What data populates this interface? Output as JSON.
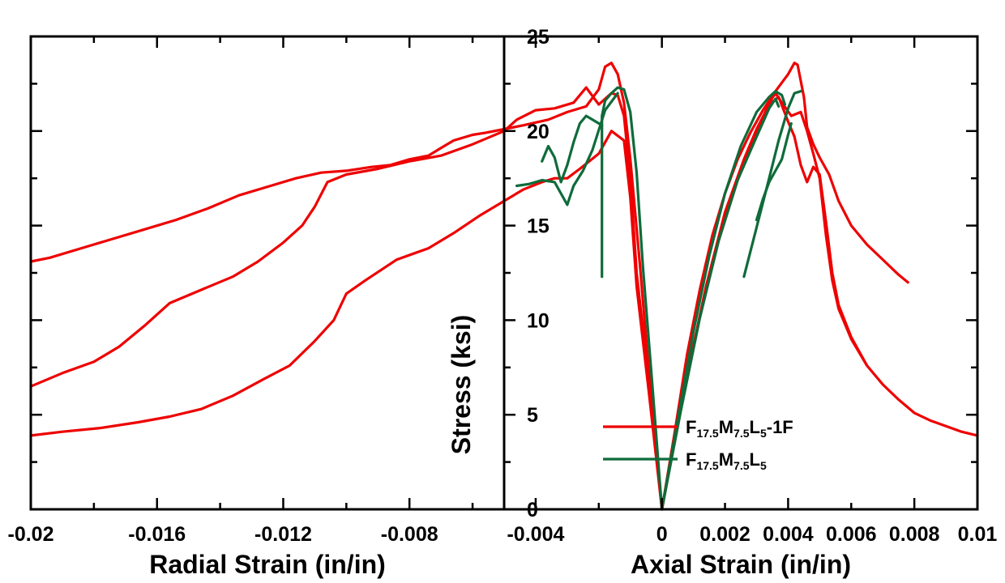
{
  "chart_data": {
    "type": "line",
    "ylabel": "Stress (ksi)",
    "x_left_label": "Radial Strain (in/in)",
    "x_right_label": "Axial Strain (in/in)",
    "x_left_ticks": [
      "-0.02",
      "-0.016",
      "-0.012",
      "-0.008",
      "-0.004",
      "0"
    ],
    "x_right_ticks": [
      "0.002",
      "0.004",
      "0.006",
      "0.008",
      "0.01"
    ],
    "y_ticks": [
      "0",
      "5",
      "10",
      "15",
      "20",
      "25"
    ],
    "xlim": [
      -0.02,
      0.01
    ],
    "ylim": [
      0,
      25
    ],
    "grid": false,
    "legend_position": "bottom-right",
    "colors": {
      "red": "#ee0000",
      "green": "#0f6b3a"
    },
    "series": [
      {
        "name": "F17.5M7.5L5-1F",
        "legend_parts": [
          {
            "t": "F",
            "sub": false
          },
          {
            "t": "17.5",
            "sub": true
          },
          {
            "t": "M",
            "sub": false
          },
          {
            "t": "7.5",
            "sub": true
          },
          {
            "t": "L",
            "sub": false
          },
          {
            "t": "5",
            "sub": true
          },
          {
            "t": "-1F",
            "sub": false
          }
        ],
        "color": "#ee0000",
        "curves": [
          [
            [
              0,
              0
            ],
            [
              0.0004,
              4
            ],
            [
              0.0008,
              8.2
            ],
            [
              0.0012,
              11.6
            ],
            [
              0.0016,
              14.5
            ],
            [
              0.002,
              16.7
            ],
            [
              0.0024,
              18.5
            ],
            [
              0.0028,
              19.9
            ],
            [
              0.0032,
              21.1
            ],
            [
              0.0036,
              22.1
            ],
            [
              0.004,
              23
            ],
            [
              0.0042,
              23.6
            ],
            [
              0.0043,
              23.5
            ],
            [
              0.0045,
              21.8
            ],
            [
              0.0046,
              20.2
            ],
            [
              0.0048,
              19.3
            ],
            [
              0.005,
              18.6
            ],
            [
              0.0053,
              17.7
            ],
            [
              0.0056,
              16.3
            ],
            [
              0.006,
              15
            ],
            [
              0.0065,
              14
            ],
            [
              0.007,
              13.2
            ],
            [
              0.0075,
              12.4
            ],
            [
              0.0078,
              12
            ]
          ],
          [
            [
              0,
              0
            ],
            [
              0.0006,
              5.4
            ],
            [
              0.0012,
              10.2
            ],
            [
              0.0018,
              14.2
            ],
            [
              0.0024,
              17.4
            ],
            [
              0.003,
              19.9
            ],
            [
              0.0034,
              21.5
            ],
            [
              0.0036,
              22
            ],
            [
              0.0038,
              21.5
            ],
            [
              0.0041,
              20.8
            ],
            [
              0.0044,
              21
            ],
            [
              0.0046,
              20
            ],
            [
              0.0048,
              18.8
            ],
            [
              0.005,
              17.5
            ],
            [
              0.0052,
              14.5
            ],
            [
              0.0054,
              12.1
            ],
            [
              0.0056,
              10.6
            ],
            [
              0.006,
              9
            ],
            [
              0.0065,
              7.6
            ],
            [
              0.007,
              6.6
            ],
            [
              0.0075,
              5.8
            ],
            [
              0.008,
              5.1
            ],
            [
              0.0085,
              4.7
            ],
            [
              0.009,
              4.4
            ],
            [
              0.0095,
              4.1
            ],
            [
              0.01,
              3.9
            ]
          ],
          [
            [
              0,
              0
            ],
            [
              0.0007,
              6.3
            ],
            [
              0.0014,
              11.8
            ],
            [
              0.002,
              15.7
            ],
            [
              0.0026,
              18.5
            ],
            [
              0.003,
              20.1
            ],
            [
              0.0034,
              21.4
            ],
            [
              0.0037,
              21.8
            ],
            [
              0.004,
              20.5
            ],
            [
              0.0042,
              19.7
            ],
            [
              0.0044,
              18.2
            ],
            [
              0.0046,
              17.3
            ],
            [
              0.0048,
              18.1
            ],
            [
              0.005,
              17.7
            ],
            [
              0.0052,
              15.2
            ],
            [
              0.0054,
              12.5
            ],
            [
              0.0056,
              10.8
            ],
            [
              0.006,
              9.1
            ],
            [
              0.0065,
              7.6
            ]
          ],
          [
            [
              0,
              0
            ],
            [
              -0.0004,
              7
            ],
            [
              -0.0007,
              13
            ],
            [
              -0.001,
              18.5
            ],
            [
              -0.0012,
              21.5
            ],
            [
              -0.0014,
              23
            ],
            [
              -0.0016,
              23.6
            ],
            [
              -0.0018,
              23.4
            ],
            [
              -0.002,
              22.2
            ],
            [
              -0.0024,
              21.3
            ],
            [
              -0.003,
              21
            ],
            [
              -0.0036,
              20.6
            ],
            [
              -0.0044,
              20.3
            ],
            [
              -0.005,
              20.1
            ],
            [
              -0.0056,
              19.9
            ],
            [
              -0.006,
              19.8
            ],
            [
              -0.0066,
              19.5
            ],
            [
              -0.007,
              19.1
            ],
            [
              -0.0074,
              18.7
            ],
            [
              -0.008,
              18.5
            ],
            [
              -0.0086,
              18.2
            ],
            [
              -0.0092,
              18.1
            ],
            [
              -0.01,
              17.9
            ],
            [
              -0.0108,
              17.8
            ],
            [
              -0.0116,
              17.5
            ],
            [
              -0.0124,
              17.1
            ],
            [
              -0.0134,
              16.6
            ],
            [
              -0.0144,
              15.9
            ],
            [
              -0.0154,
              15.3
            ],
            [
              -0.0164,
              14.8
            ],
            [
              -0.0174,
              14.3
            ],
            [
              -0.0184,
              13.8
            ],
            [
              -0.0194,
              13.3
            ],
            [
              -0.02,
              13.1
            ]
          ],
          [
            [
              0,
              0
            ],
            [
              -0.0004,
              6.5
            ],
            [
              -0.0008,
              12.5
            ],
            [
              -0.001,
              17.5
            ],
            [
              -0.0012,
              20.8
            ],
            [
              -0.0014,
              21.9
            ],
            [
              -0.0016,
              22
            ],
            [
              -0.002,
              21.4
            ],
            [
              -0.0024,
              22.3
            ],
            [
              -0.0028,
              21.5
            ],
            [
              -0.0034,
              21.2
            ],
            [
              -0.004,
              21.1
            ],
            [
              -0.0046,
              20.6
            ],
            [
              -0.005,
              20
            ],
            [
              -0.006,
              19.3
            ],
            [
              -0.007,
              18.7
            ],
            [
              -0.008,
              18.4
            ],
            [
              -0.009,
              18
            ],
            [
              -0.01,
              17.7
            ],
            [
              -0.0106,
              17.3
            ],
            [
              -0.011,
              16
            ],
            [
              -0.0114,
              15
            ],
            [
              -0.012,
              14.1
            ],
            [
              -0.0128,
              13.1
            ],
            [
              -0.0136,
              12.3
            ],
            [
              -0.0146,
              11.6
            ],
            [
              -0.0156,
              10.9
            ],
            [
              -0.0164,
              9.7
            ],
            [
              -0.0172,
              8.6
            ],
            [
              -0.018,
              7.8
            ],
            [
              -0.019,
              7.2
            ],
            [
              -0.02,
              6.5
            ]
          ],
          [
            [
              0,
              0
            ],
            [
              -0.0004,
              6
            ],
            [
              -0.0008,
              11.8
            ],
            [
              -0.001,
              16.5
            ],
            [
              -0.0012,
              19.5
            ],
            [
              -0.0016,
              20
            ],
            [
              -0.002,
              18.8
            ],
            [
              -0.0026,
              18
            ],
            [
              -0.003,
              17.5
            ],
            [
              -0.0034,
              17.5
            ],
            [
              -0.0038,
              17.3
            ],
            [
              -0.0044,
              16.9
            ],
            [
              -0.005,
              16.3
            ],
            [
              -0.0058,
              15.5
            ],
            [
              -0.0066,
              14.6
            ],
            [
              -0.0074,
              13.8
            ],
            [
              -0.0084,
              13.2
            ],
            [
              -0.0094,
              12.1
            ],
            [
              -0.01,
              11.4
            ],
            [
              -0.0104,
              10
            ],
            [
              -0.011,
              8.9
            ],
            [
              -0.0118,
              7.6
            ],
            [
              -0.0126,
              6.9
            ],
            [
              -0.0136,
              6
            ],
            [
              -0.0146,
              5.3
            ],
            [
              -0.0156,
              4.9
            ],
            [
              -0.0166,
              4.6
            ],
            [
              -0.0178,
              4.3
            ],
            [
              -0.019,
              4.1
            ],
            [
              -0.02,
              3.9
            ]
          ]
        ]
      },
      {
        "name": "F17.5M7.5L5",
        "legend_parts": [
          {
            "t": "F",
            "sub": false
          },
          {
            "t": "17.5",
            "sub": true
          },
          {
            "t": "M",
            "sub": false
          },
          {
            "t": "7.5",
            "sub": true
          },
          {
            "t": "L",
            "sub": false
          },
          {
            "t": "5",
            "sub": true
          }
        ],
        "color": "#0f6b3a",
        "curves": [
          [
            [
              0,
              0
            ],
            [
              0.0005,
              4.7
            ],
            [
              0.001,
              9.4
            ],
            [
              0.0015,
              13.4
            ],
            [
              0.002,
              16.7
            ],
            [
              0.0025,
              19.2
            ],
            [
              0.003,
              21
            ],
            [
              0.0034,
              21.8
            ],
            [
              0.0036,
              22.1
            ],
            [
              0.0038,
              21.9
            ],
            [
              0.0039,
              21.4
            ]
          ],
          [
            [
              0.0026,
              12.3
            ],
            [
              0.003,
              14.9
            ],
            [
              0.0034,
              17.5
            ],
            [
              0.0037,
              19.5
            ],
            [
              0.004,
              21.2
            ],
            [
              0.0042,
              22
            ],
            [
              0.0044,
              22.1
            ]
          ],
          [
            [
              0,
              0
            ],
            [
              0.0006,
              5.2
            ],
            [
              0.0012,
              10.1
            ],
            [
              0.0018,
              14.2
            ],
            [
              0.0024,
              17.4
            ],
            [
              0.003,
              19.7
            ],
            [
              0.0034,
              21.2
            ],
            [
              0.0036,
              21.7
            ],
            [
              0.0037,
              21.3
            ]
          ],
          [
            [
              0.003,
              15.3
            ],
            [
              0.0032,
              16.4
            ],
            [
              0.0034,
              17.3
            ],
            [
              0.0036,
              17.9
            ],
            [
              0.0038,
              18.5
            ],
            [
              0.004,
              19.8
            ],
            [
              0.0041,
              20.4
            ]
          ],
          [
            [
              0,
              0
            ],
            [
              -0.0003,
              6.5
            ],
            [
              -0.0006,
              12.8
            ],
            [
              -0.0008,
              17.8
            ],
            [
              -0.001,
              21
            ],
            [
              -0.0012,
              22.2
            ],
            [
              -0.0014,
              22.3
            ],
            [
              -0.0016,
              22
            ],
            [
              -0.0018,
              21.6
            ],
            [
              -0.0019,
              20.8
            ],
            [
              -0.0019,
              12.3
            ]
          ],
          [
            [
              -0.0019,
              20.3
            ],
            [
              -0.0022,
              20.6
            ],
            [
              -0.0024,
              20.8
            ],
            [
              -0.0026,
              20.4
            ],
            [
              -0.0028,
              19.4
            ],
            [
              -0.003,
              18.2
            ],
            [
              -0.0032,
              17.3
            ],
            [
              -0.0034,
              18.6
            ],
            [
              -0.0036,
              19.2
            ],
            [
              -0.0038,
              18.4
            ]
          ],
          [
            [
              -0.0014,
              22
            ],
            [
              -0.0018,
              21.1
            ],
            [
              -0.0022,
              19
            ],
            [
              -0.0025,
              17.9
            ],
            [
              -0.0028,
              17.1
            ],
            [
              -0.003,
              16.1
            ],
            [
              -0.0034,
              17.3
            ],
            [
              -0.0038,
              17.4
            ],
            [
              -0.0042,
              17.2
            ],
            [
              -0.0046,
              17.1
            ]
          ]
        ]
      }
    ]
  }
}
